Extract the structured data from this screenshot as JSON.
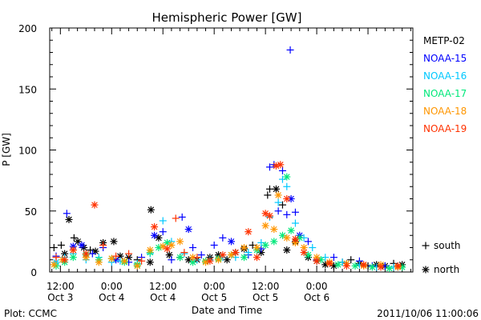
{
  "chart_data": {
    "type": "scatter",
    "title": "Hemispheric Power [GW]",
    "ylabel": "P [GW]",
    "xlabel": "Date and Time",
    "ylim": [
      0,
      200
    ],
    "yticks": [
      0,
      50,
      100,
      150,
      200
    ],
    "xlim_hours": [
      -2.5,
      82.5
    ],
    "xticks": [
      {
        "hour": 0,
        "line1": "12:00",
        "line2": "Oct 3"
      },
      {
        "hour": 12,
        "line1": "0:00",
        "line2": "Oct 4"
      },
      {
        "hour": 24,
        "line1": "12:00",
        "line2": "Oct 4"
      },
      {
        "hour": 36,
        "line1": "0:00",
        "line2": "Oct 5"
      },
      {
        "hour": 48,
        "line1": "12:00",
        "line2": "Oct 5"
      },
      {
        "hour": 60,
        "line1": "0:00",
        "line2": "Oct 6"
      }
    ],
    "marker_legend": [
      {
        "symbol": "+",
        "label": "south"
      },
      {
        "symbol": "*",
        "label": "north"
      }
    ],
    "series": [
      {
        "name": "METP-02",
        "color": "#000000",
        "points": [
          [
            -1.5,
            20,
            "+"
          ],
          [
            0.2,
            22,
            "+"
          ],
          [
            1,
            15,
            "*"
          ],
          [
            2,
            43,
            "*"
          ],
          [
            3.2,
            28,
            "+"
          ],
          [
            4.1,
            25,
            "*"
          ],
          [
            5.5,
            20,
            "*"
          ],
          [
            7,
            18,
            "+"
          ],
          [
            8.2,
            17,
            "*"
          ],
          [
            10,
            24,
            "*"
          ],
          [
            12.5,
            25,
            "*"
          ],
          [
            14,
            13,
            "*"
          ],
          [
            16,
            12,
            "*"
          ],
          [
            18,
            10,
            "+"
          ],
          [
            21,
            8,
            "*"
          ],
          [
            21.2,
            51,
            "*"
          ],
          [
            23,
            28,
            "*"
          ],
          [
            25.5,
            14,
            "*"
          ],
          [
            28,
            12,
            "+"
          ],
          [
            30,
            10,
            "*"
          ],
          [
            32,
            10,
            "*"
          ],
          [
            35,
            12,
            "*"
          ],
          [
            37,
            14,
            "*"
          ],
          [
            39,
            10,
            "*"
          ],
          [
            41,
            16,
            "*"
          ],
          [
            43,
            19,
            "*"
          ],
          [
            45,
            22,
            "+"
          ],
          [
            47,
            16,
            "*"
          ],
          [
            48.5,
            63,
            "+"
          ],
          [
            49,
            68,
            "+"
          ],
          [
            50.5,
            68,
            "*"
          ],
          [
            52,
            55,
            "+"
          ],
          [
            53,
            18,
            "*"
          ],
          [
            55,
            25,
            "*"
          ],
          [
            58,
            12,
            "*"
          ],
          [
            60,
            9,
            "*"
          ],
          [
            62,
            6,
            "*"
          ],
          [
            64,
            5,
            "*"
          ],
          [
            66,
            8,
            "+"
          ],
          [
            68,
            10,
            "+"
          ],
          [
            70,
            7,
            "*"
          ],
          [
            72,
            5,
            "+"
          ],
          [
            74,
            6,
            "*"
          ],
          [
            76,
            5,
            "*"
          ],
          [
            78,
            7,
            "+"
          ],
          [
            80,
            6,
            "*"
          ]
        ]
      },
      {
        "name": "NOAA-15",
        "color": "#0000ff",
        "points": [
          [
            -1,
            13,
            "+"
          ],
          [
            1.5,
            48,
            "+"
          ],
          [
            3,
            21,
            "*"
          ],
          [
            5,
            22,
            "*"
          ],
          [
            7.5,
            15,
            "+"
          ],
          [
            10,
            20,
            "+"
          ],
          [
            13,
            10,
            "*"
          ],
          [
            16,
            8,
            "+"
          ],
          [
            19,
            12,
            "+"
          ],
          [
            22,
            30,
            "*"
          ],
          [
            24,
            33,
            "+"
          ],
          [
            26,
            10,
            "+"
          ],
          [
            28.5,
            45,
            "+"
          ],
          [
            30,
            35,
            "*"
          ],
          [
            31,
            20,
            "+"
          ],
          [
            33,
            14,
            "+"
          ],
          [
            36,
            22,
            "+"
          ],
          [
            38,
            28,
            "+"
          ],
          [
            40,
            25,
            "*"
          ],
          [
            44,
            14,
            "+"
          ],
          [
            47,
            19,
            "+"
          ],
          [
            49,
            86,
            "+"
          ],
          [
            50,
            88,
            "+"
          ],
          [
            51,
            50,
            "+"
          ],
          [
            52,
            83,
            "+"
          ],
          [
            53,
            47,
            "+"
          ],
          [
            54,
            60,
            "*"
          ],
          [
            55,
            49,
            "+"
          ],
          [
            53.8,
            182,
            "+"
          ],
          [
            56,
            30,
            "*"
          ],
          [
            58,
            25,
            "+"
          ],
          [
            60,
            10,
            "+"
          ],
          [
            64,
            12,
            "+"
          ],
          [
            67,
            7,
            "+"
          ],
          [
            70,
            9,
            "+"
          ],
          [
            73,
            5,
            "+"
          ],
          [
            76,
            5,
            "+"
          ],
          [
            79,
            4,
            "+"
          ]
        ]
      },
      {
        "name": "NOAA-16",
        "color": "#00c8ff",
        "points": [
          [
            -1,
            8,
            "*"
          ],
          [
            1,
            12,
            "+"
          ],
          [
            3,
            15,
            "+"
          ],
          [
            6,
            10,
            "+"
          ],
          [
            9,
            12,
            "+"
          ],
          [
            12,
            8,
            "+"
          ],
          [
            14,
            9,
            "+"
          ],
          [
            18,
            7,
            "+"
          ],
          [
            21,
            15,
            "+"
          ],
          [
            24,
            42,
            "+"
          ],
          [
            26,
            25,
            "+"
          ],
          [
            29,
            15,
            "+"
          ],
          [
            32,
            10,
            "+"
          ],
          [
            35,
            10,
            "+"
          ],
          [
            38,
            12,
            "+"
          ],
          [
            41,
            12,
            "+"
          ],
          [
            44,
            16,
            "+"
          ],
          [
            47,
            24,
            "+"
          ],
          [
            49,
            45,
            "+"
          ],
          [
            51,
            57,
            "+"
          ],
          [
            52,
            76,
            "+"
          ],
          [
            53,
            70,
            "+"
          ],
          [
            55,
            40,
            "+"
          ],
          [
            57,
            28,
            "+"
          ],
          [
            59,
            20,
            "+"
          ],
          [
            62,
            12,
            "+"
          ],
          [
            66,
            8,
            "+"
          ],
          [
            70,
            6,
            "+"
          ],
          [
            74,
            4,
            "+"
          ],
          [
            78,
            4,
            "+"
          ]
        ]
      },
      {
        "name": "NOAA-17",
        "color": "#00e87a",
        "points": [
          [
            -1,
            5,
            "*"
          ],
          [
            1,
            8,
            "*"
          ],
          [
            3,
            12,
            "*"
          ],
          [
            6,
            14,
            "*"
          ],
          [
            9,
            10,
            "*"
          ],
          [
            12,
            11,
            "*"
          ],
          [
            15,
            8,
            "*"
          ],
          [
            18,
            6,
            "*"
          ],
          [
            21,
            16,
            "*"
          ],
          [
            23,
            20,
            "*"
          ],
          [
            25,
            24,
            "*"
          ],
          [
            28,
            12,
            "*"
          ],
          [
            31,
            8,
            "*"
          ],
          [
            34,
            9,
            "*"
          ],
          [
            37,
            11,
            "*"
          ],
          [
            40,
            14,
            "*"
          ],
          [
            43,
            12,
            "*"
          ],
          [
            46,
            18,
            "*"
          ],
          [
            48,
            22,
            "*"
          ],
          [
            50,
            25,
            "*"
          ],
          [
            52,
            30,
            "*"
          ],
          [
            54,
            34,
            "*"
          ],
          [
            53,
            78,
            "*"
          ],
          [
            56,
            28,
            "*"
          ],
          [
            58,
            14,
            "*"
          ],
          [
            61,
            10,
            "*"
          ],
          [
            65,
            6,
            "*"
          ],
          [
            69,
            5,
            "*"
          ],
          [
            73,
            4,
            "*"
          ],
          [
            77,
            3,
            "*"
          ],
          [
            80,
            4,
            "*"
          ]
        ]
      },
      {
        "name": "NOAA-18",
        "color": "#ff9600",
        "points": [
          [
            -1.5,
            6,
            "*"
          ],
          [
            0.5,
            10,
            "*"
          ],
          [
            3,
            18,
            "*"
          ],
          [
            6,
            12,
            "*"
          ],
          [
            9,
            8,
            "*"
          ],
          [
            12,
            11,
            "*"
          ],
          [
            15,
            9,
            "*"
          ],
          [
            18,
            5,
            "*"
          ],
          [
            21,
            18,
            "*"
          ],
          [
            24,
            21,
            "*"
          ],
          [
            26,
            22,
            "*"
          ],
          [
            28,
            25,
            "*"
          ],
          [
            31,
            12,
            "*"
          ],
          [
            34,
            8,
            "*"
          ],
          [
            37,
            10,
            "*"
          ],
          [
            40,
            14,
            "*"
          ],
          [
            43,
            20,
            "*"
          ],
          [
            46,
            20,
            "*"
          ],
          [
            48,
            38,
            "*"
          ],
          [
            50,
            35,
            "*"
          ],
          [
            51,
            63,
            "*"
          ],
          [
            53,
            28,
            "*"
          ],
          [
            55,
            24,
            "*"
          ],
          [
            57,
            20,
            "*"
          ],
          [
            60,
            12,
            "*"
          ],
          [
            63,
            8,
            "*"
          ],
          [
            67,
            7,
            "*"
          ],
          [
            71,
            5,
            "*"
          ],
          [
            75,
            6,
            "*"
          ],
          [
            79,
            4,
            "*"
          ]
        ]
      },
      {
        "name": "NOAA-19",
        "color": "#ff3200",
        "points": [
          [
            -1,
            12,
            "+"
          ],
          [
            1,
            10,
            "*"
          ],
          [
            3,
            18,
            "*"
          ],
          [
            6,
            15,
            "*"
          ],
          [
            8,
            55,
            "*"
          ],
          [
            10,
            22,
            "+"
          ],
          [
            13,
            13,
            "+"
          ],
          [
            16,
            15,
            "+"
          ],
          [
            19,
            9,
            "+"
          ],
          [
            22,
            37,
            "*"
          ],
          [
            25,
            19,
            "*"
          ],
          [
            27,
            44,
            "+"
          ],
          [
            29,
            16,
            "+"
          ],
          [
            32,
            12,
            "+"
          ],
          [
            35,
            9,
            "*"
          ],
          [
            38,
            14,
            "*"
          ],
          [
            41,
            16,
            "*"
          ],
          [
            44,
            33,
            "*"
          ],
          [
            46,
            12,
            "*"
          ],
          [
            48,
            48,
            "*"
          ],
          [
            49,
            46,
            "*"
          ],
          [
            50.5,
            87,
            "*"
          ],
          [
            51.5,
            88,
            "*"
          ],
          [
            53,
            60,
            "*"
          ],
          [
            55,
            27,
            "*"
          ],
          [
            57,
            16,
            "*"
          ],
          [
            60,
            9,
            "*"
          ],
          [
            63,
            7,
            "*"
          ],
          [
            67,
            5,
            "*"
          ],
          [
            71,
            6,
            "*"
          ],
          [
            75,
            4,
            "*"
          ],
          [
            79,
            5,
            "*"
          ]
        ]
      }
    ]
  },
  "footer": {
    "plot_label": "Plot: CCMC",
    "timestamp": "2011/10/06 11:00:06"
  }
}
